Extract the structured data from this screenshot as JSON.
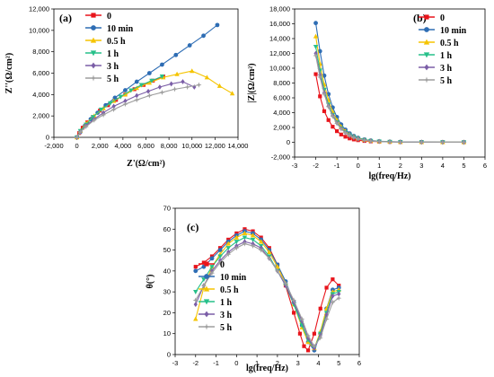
{
  "series_styles": [
    {
      "name": "0",
      "color": "#e8141b",
      "marker": "square"
    },
    {
      "name": "10 min",
      "color": "#2e6db4",
      "marker": "circle"
    },
    {
      "name": "0.5 h",
      "color": "#f5c400",
      "marker": "triangle"
    },
    {
      "name": "1 h",
      "color": "#27c08a",
      "marker": "triangle-down"
    },
    {
      "name": "3 h",
      "color": "#7b5ea7",
      "marker": "diamond"
    },
    {
      "name": "5 h",
      "color": "#9e9e9e",
      "marker": "star"
    }
  ],
  "chart_data": [
    {
      "panel": "(a)",
      "type": "scatter",
      "xlabel": "Z'(Ω/cm²)",
      "ylabel": "Z''(Ω/cm²)",
      "xlim": [
        -2000,
        14000
      ],
      "ylim": [
        0,
        12000
      ],
      "xticks": [
        -2000,
        0,
        2000,
        4000,
        6000,
        8000,
        10000,
        12000,
        14000
      ],
      "yticks": [
        0,
        2000,
        4000,
        6000,
        8000,
        10000,
        12000
      ],
      "xtick_labels": [
        "-2,000",
        "0",
        "2,000",
        "4,000",
        "6,000",
        "8,000",
        "10,000",
        "12,000",
        "14,000"
      ],
      "ytick_labels": [
        "0",
        "2,000",
        "4,000",
        "6,000",
        "8,000",
        "10,000",
        "12,000"
      ],
      "legend": "top-left",
      "series": [
        {
          "name": "0",
          "x": [
            0,
            200,
            500,
            900,
            1400,
            2000,
            2700,
            3400,
            4200,
            5000,
            5800,
            6600,
            7500
          ],
          "y": [
            0,
            400,
            900,
            1400,
            1900,
            2500,
            3000,
            3500,
            4000,
            4500,
            4900,
            5300,
            5700
          ]
        },
        {
          "name": "10 min",
          "x": [
            0,
            300,
            700,
            1200,
            1800,
            2500,
            3300,
            4200,
            5200,
            6300,
            7400,
            8600,
            9800,
            11000,
            12200
          ],
          "y": [
            0,
            500,
            1100,
            1700,
            2300,
            3000,
            3700,
            4400,
            5200,
            6000,
            6800,
            7700,
            8600,
            9500,
            10500
          ]
        },
        {
          "name": "0.5 h",
          "x": [
            0,
            300,
            800,
            1500,
            2300,
            3200,
            4200,
            5200,
            6300,
            7500,
            8700,
            10000,
            11300,
            12400,
            13500
          ],
          "y": [
            0,
            600,
            1300,
            2000,
            2700,
            3400,
            4000,
            4600,
            5100,
            5600,
            5900,
            6200,
            5600,
            4800,
            4100
          ]
        },
        {
          "name": "1 h",
          "x": [
            0,
            300,
            800,
            1400,
            2100,
            2900,
            3800,
            4700,
            5600,
            6500,
            7400
          ],
          "y": [
            0,
            600,
            1200,
            1900,
            2600,
            3200,
            3800,
            4400,
            4900,
            5300,
            5700
          ]
        },
        {
          "name": "3 h",
          "x": [
            0,
            300,
            800,
            1500,
            2300,
            3200,
            4200,
            5200,
            6200,
            7200,
            8200,
            9200,
            10200
          ],
          "y": [
            0,
            500,
            1100,
            1700,
            2300,
            2900,
            3400,
            3900,
            4300,
            4700,
            5000,
            5200,
            4700
          ]
        },
        {
          "name": "5 h",
          "x": [
            0,
            300,
            800,
            1500,
            2300,
            3200,
            4200,
            5200,
            6300,
            7400,
            8500,
            9600,
            10600
          ],
          "y": [
            0,
            500,
            1000,
            1600,
            2100,
            2600,
            3100,
            3500,
            3900,
            4200,
            4500,
            4700,
            4900
          ]
        }
      ]
    },
    {
      "panel": "(b)",
      "type": "line",
      "xlabel": "lg(freq/Hz)",
      "ylabel": "|Z|(Ω/cm²)",
      "xlim": [
        -3,
        6
      ],
      "ylim": [
        -2000,
        18000
      ],
      "xticks": [
        -3,
        -2,
        -1,
        0,
        1,
        2,
        3,
        4,
        5,
        6
      ],
      "yticks": [
        -2000,
        0,
        2000,
        4000,
        6000,
        8000,
        10000,
        12000,
        14000,
        16000,
        18000
      ],
      "xtick_labels": [
        "-3",
        "-2",
        "-1",
        "0",
        "1",
        "2",
        "3",
        "4",
        "5",
        "6"
      ],
      "ytick_labels": [
        "-2,000",
        "0",
        "2,000",
        "4,000",
        "6,000",
        "8,000",
        "10,000",
        "12,000",
        "14,000",
        "16,000",
        "18,000"
      ],
      "legend": "top-right",
      "x": [
        -2,
        -1.8,
        -1.6,
        -1.4,
        -1.2,
        -1,
        -0.8,
        -0.6,
        -0.4,
        -0.2,
        0,
        0.3,
        0.6,
        1,
        1.5,
        2,
        3,
        4,
        5
      ],
      "series": [
        {
          "name": "0",
          "y": [
            9200,
            6200,
            4200,
            3000,
            2100,
            1500,
            1050,
            750,
            520,
            380,
            280,
            180,
            120,
            80,
            50,
            30,
            20,
            10,
            5
          ]
        },
        {
          "name": "10 min",
          "y": [
            16100,
            12300,
            9000,
            6500,
            4700,
            3400,
            2400,
            1700,
            1200,
            850,
            600,
            380,
            240,
            140,
            80,
            50,
            30,
            15,
            5
          ]
        },
        {
          "name": "0.5 h",
          "y": [
            14300,
            10600,
            7800,
            5700,
            4100,
            3000,
            2100,
            1500,
            1050,
            750,
            520,
            330,
            210,
            120,
            70,
            45,
            25,
            12,
            5
          ]
        },
        {
          "name": "1 h",
          "y": [
            12900,
            9700,
            7100,
            5100,
            3700,
            2700,
            1900,
            1350,
            950,
            680,
            470,
            300,
            190,
            110,
            65,
            40,
            25,
            12,
            5
          ]
        },
        {
          "name": "3 h",
          "y": [
            12000,
            9100,
            6700,
            4900,
            3600,
            2600,
            1850,
            1300,
            920,
            650,
            450,
            290,
            180,
            105,
            60,
            38,
            22,
            11,
            5
          ]
        },
        {
          "name": "5 h",
          "y": [
            11700,
            8800,
            6500,
            4800,
            3500,
            2550,
            1800,
            1270,
            900,
            640,
            440,
            280,
            175,
            100,
            58,
            36,
            21,
            10,
            5
          ]
        }
      ]
    },
    {
      "panel": "(c)",
      "type": "line",
      "xlabel": "lg(freq/Hz)",
      "ylabel": "θ(°)",
      "xlim": [
        -3,
        6
      ],
      "ylim": [
        0,
        70
      ],
      "xticks": [
        -3,
        -2,
        -1,
        0,
        1,
        2,
        3,
        4,
        5,
        6
      ],
      "yticks": [
        0,
        10,
        20,
        30,
        40,
        50,
        60,
        70
      ],
      "xtick_labels": [
        "-3",
        "-2",
        "-1",
        "0",
        "1",
        "2",
        "3",
        "4",
        "5",
        "6"
      ],
      "ytick_labels": [
        "0",
        "10",
        "20",
        "30",
        "40",
        "50",
        "60",
        "70"
      ],
      "legend": "bottom-center",
      "series": [
        {
          "name": "0",
          "x": [
            -2,
            -1.6,
            -1.2,
            -0.8,
            -0.4,
            0,
            0.4,
            0.8,
            1.2,
            1.6,
            2,
            2.4,
            2.8,
            3.1,
            3.3,
            3.5,
            3.8,
            4.1,
            4.4,
            4.7,
            5
          ],
          "y": [
            42,
            44,
            47,
            51,
            55,
            58,
            60,
            59,
            56,
            51,
            43,
            33,
            20,
            10,
            4,
            2,
            10,
            22,
            32,
            36,
            33
          ]
        },
        {
          "name": "10 min",
          "x": [
            -2,
            -1.6,
            -1.2,
            -0.8,
            -0.4,
            0,
            0.4,
            0.8,
            1.2,
            1.6,
            2,
            2.4,
            2.8,
            3.2,
            3.5,
            3.8,
            4.1,
            4.4,
            4.7,
            5
          ],
          "y": [
            40,
            42,
            46,
            50,
            54,
            57,
            59,
            58,
            55,
            50,
            43,
            35,
            25,
            14,
            6,
            2,
            10,
            22,
            31,
            32
          ]
        },
        {
          "name": "0.5 h",
          "x": [
            -2,
            -1.6,
            -1.2,
            -0.8,
            -0.4,
            0,
            0.4,
            0.8,
            1.2,
            1.6,
            2,
            2.4,
            2.8,
            3.2,
            3.5,
            3.8,
            4.1,
            4.4,
            4.7,
            5
          ],
          "y": [
            17,
            32,
            42,
            48,
            53,
            56,
            58,
            57,
            54,
            49,
            42,
            34,
            24,
            13,
            6,
            3,
            11,
            22,
            30,
            31
          ]
        },
        {
          "name": "1 h",
          "x": [
            -2,
            -1.6,
            -1.2,
            -0.8,
            -0.4,
            0,
            0.4,
            0.8,
            1.2,
            1.6,
            2,
            2.4,
            2.8,
            3.2,
            3.5,
            3.8,
            4.1,
            4.4,
            4.7,
            5
          ],
          "y": [
            30,
            36,
            42,
            47,
            51,
            54,
            56,
            55,
            52,
            47,
            40,
            33,
            24,
            14,
            7,
            3,
            10,
            20,
            29,
            30
          ]
        },
        {
          "name": "3 h",
          "x": [
            -2,
            -1.6,
            -1.2,
            -0.8,
            -0.4,
            0,
            0.4,
            0.8,
            1.2,
            1.6,
            2,
            2.4,
            2.8,
            3.2,
            3.5,
            3.8,
            4.1,
            4.4,
            4.7,
            5
          ],
          "y": [
            24,
            33,
            40,
            45,
            49,
            52,
            54,
            53,
            51,
            46,
            40,
            33,
            25,
            16,
            8,
            3,
            9,
            19,
            28,
            29
          ]
        },
        {
          "name": "5 h",
          "x": [
            -2,
            -1.6,
            -1.2,
            -0.8,
            -0.4,
            0,
            0.4,
            0.8,
            1.2,
            1.6,
            2,
            2.4,
            2.8,
            3.2,
            3.5,
            3.8,
            4.1,
            4.4,
            4.7,
            5
          ],
          "y": [
            26,
            33,
            39,
            44,
            48,
            51,
            53,
            52,
            50,
            46,
            40,
            34,
            26,
            17,
            9,
            4,
            8,
            17,
            25,
            27
          ]
        }
      ]
    }
  ]
}
